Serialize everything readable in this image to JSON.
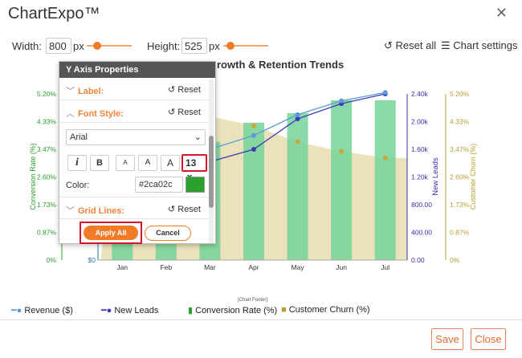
{
  "app": {
    "title": "ChartExpo™"
  },
  "toolbar": {
    "width_label": "Width:",
    "width_value": "800",
    "width_unit": "px",
    "height_label": "Height:",
    "height_value": "525",
    "height_unit": "px",
    "reset_all": "Reset all",
    "chart_settings": "Chart settings"
  },
  "chart_title_visible": "rowth & Retention Trends",
  "panel": {
    "title": "Y Axis Properties",
    "label_section": "Label:",
    "font_style_section": "Font Style:",
    "grid_lines_section": "Grid Lines:",
    "reset": "Reset",
    "font_family": "Arial",
    "italic": "i",
    "bold": "B",
    "size_s": "A",
    "size_m": "A",
    "size_l": "A",
    "font_size": "13",
    "color_label": "Color:",
    "color_value": "#2ca02c",
    "apply": "Apply All",
    "cancel": "Cancel"
  },
  "chart_data": {
    "type": "bar",
    "categories": [
      "Jan",
      "Feb",
      "Mar",
      "Apr",
      "May",
      "Jun",
      "Jul"
    ],
    "left_axis": {
      "label": "Conversion Rate (%)",
      "ticks": [
        "0%",
        "0.87%",
        "1.73%",
        "2.60%",
        "3.47%",
        "4.33%",
        "5.20%"
      ],
      "color": "#2ca02c"
    },
    "revenue_axis": {
      "ticks": [
        "$0"
      ],
      "color": "#1f77b4"
    },
    "new_leads_axis": {
      "label": "New Leads",
      "ticks": [
        "0.00",
        "400.00",
        "800.00",
        "1.20k",
        "1.60k",
        "2.00k",
        "2.40k"
      ],
      "color": "#3b2fb0"
    },
    "churn_axis": {
      "label": "Customer Churn (%)",
      "ticks": [
        "0%",
        "0.87%",
        "1.73%",
        "2.60%",
        "3.47%",
        "4.33%",
        "5.20%"
      ],
      "color": "#b8a030"
    },
    "series": [
      {
        "name": "Conversion Rate (%)",
        "type": "bar",
        "values": [
          2.7,
          3.2,
          3.7,
          4.3,
          4.6,
          5.0,
          5.0
        ],
        "color": "#76d49a"
      },
      {
        "name": "Customer Churn (%)",
        "type": "area",
        "values": [
          4.9,
          4.7,
          4.5,
          4.2,
          3.7,
          3.4,
          3.2
        ],
        "color": "#e9dfb4"
      },
      {
        "name": "New Leads",
        "type": "line",
        "values": [
          1150,
          1280,
          1420,
          1600,
          2040,
          2260,
          2400
        ],
        "color": "#3b3bb8"
      },
      {
        "name": "Revenue ($)",
        "type": "line",
        "values": [
          1300,
          1450,
          1600,
          1800,
          2100,
          2300,
          2420
        ],
        "color": "#5b9bd5"
      }
    ],
    "ylim_left": [
      0,
      5.2
    ],
    "ylim_leads": [
      0,
      2400
    ]
  },
  "legend": {
    "revenue": "Revenue ($)",
    "new_leads": "New Leads",
    "conversion": "Conversion Rate (%)",
    "churn": "Customer Churn (%)",
    "chart_footer": "[Chart Footer]"
  },
  "footer": {
    "save": "Save",
    "close": "Close"
  }
}
